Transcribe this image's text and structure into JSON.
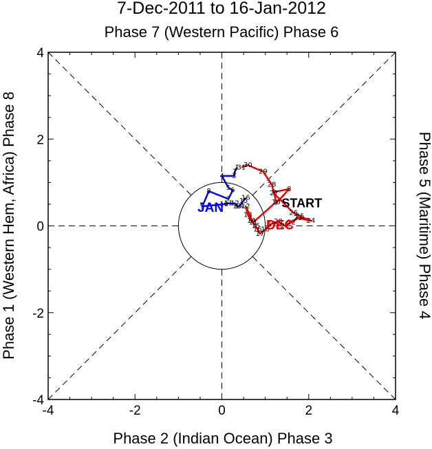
{
  "title": "7-Dec-2011 to 16-Jan-2012",
  "subtitle": "Phase 7 (Western Pacific) Phase 6",
  "xlabel": "Phase 2 (Indian Ocean) Phase 3",
  "ylabel_left": "Phase 1 (Western Hem, Africa) Phase 8",
  "ylabel_right": "Phase 5 (Maritime) Phase 4",
  "chart_data": {
    "type": "line",
    "xlim": [
      -4,
      4
    ],
    "ylim": [
      -4,
      4
    ],
    "x_ticks": [
      -4,
      -2,
      0,
      2,
      4
    ],
    "y_ticks": [
      -4,
      -2,
      0,
      2,
      4
    ],
    "unit_circle_radius": 1,
    "grid": "dashed phase boundaries",
    "start_label": "START",
    "series": [
      {
        "name": "DEC",
        "color": "#ee0000",
        "points": [
          {
            "day": "7",
            "x": 1.25,
            "y": 0.52
          },
          {
            "day": "8",
            "x": 1.55,
            "y": 0.85
          },
          {
            "day": "9",
            "x": 1.2,
            "y": 0.78
          },
          {
            "day": "10",
            "x": 1.25,
            "y": 0.55
          },
          {
            "day": "11",
            "x": 0.72,
            "y": 0.08
          },
          {
            "day": "12",
            "x": 0.55,
            "y": 0.45
          },
          {
            "day": "13",
            "x": 0.6,
            "y": 0.25
          },
          {
            "day": "14",
            "x": 0.68,
            "y": 0.12
          },
          {
            "day": "15",
            "x": 0.78,
            "y": 0.0
          },
          {
            "day": "16",
            "x": 0.82,
            "y": -0.08
          },
          {
            "day": "17",
            "x": 0.88,
            "y": -0.18
          },
          {
            "day": "18",
            "x": 1.0,
            "y": -0.08
          },
          {
            "day": "19",
            "x": 1.15,
            "y": 0.05
          },
          {
            "day": "20",
            "x": 1.3,
            "y": 0.1
          },
          {
            "day": "21",
            "x": 1.45,
            "y": 0.0
          },
          {
            "day": "22",
            "x": 1.6,
            "y": 0.08
          },
          {
            "day": "23",
            "x": 1.75,
            "y": 0.18
          },
          {
            "day": "24",
            "x": 2.05,
            "y": 0.12
          },
          {
            "day": "25",
            "x": 1.8,
            "y": 0.22
          },
          {
            "day": "26",
            "x": 1.65,
            "y": 0.3
          },
          {
            "day": "27",
            "x": 1.2,
            "y": 0.75
          },
          {
            "day": "28",
            "x": 1.15,
            "y": 0.95
          },
          {
            "day": "29",
            "x": 0.95,
            "y": 1.25
          },
          {
            "day": "30",
            "x": 0.6,
            "y": 1.4
          },
          {
            "day": "31",
            "x": 0.45,
            "y": 1.35
          }
        ]
      },
      {
        "name": "JAN",
        "color": "#0000ee",
        "points": [
          {
            "day": "1",
            "x": 0.35,
            "y": 1.35
          },
          {
            "day": "2",
            "x": 0.3,
            "y": 1.25
          },
          {
            "day": "3",
            "x": 0.28,
            "y": 1.15
          },
          {
            "day": "4",
            "x": 0.0,
            "y": 1.15
          },
          {
            "day": "5",
            "x": 0.15,
            "y": 0.88
          },
          {
            "day": "6",
            "x": 0.25,
            "y": 0.82
          },
          {
            "day": "7",
            "x": 0.15,
            "y": 0.62
          },
          {
            "day": "8",
            "x": -0.3,
            "y": 0.8
          },
          {
            "day": "9",
            "x": -0.45,
            "y": 0.45
          },
          {
            "day": "10",
            "x": 0.05,
            "y": 0.5
          },
          {
            "day": "11",
            "x": 0.15,
            "y": 0.52
          },
          {
            "day": "12",
            "x": 0.3,
            "y": 0.52
          },
          {
            "day": "13",
            "x": 0.35,
            "y": 0.45
          },
          {
            "day": "14",
            "x": 0.4,
            "y": 0.45
          },
          {
            "day": "15",
            "x": 0.5,
            "y": 0.58
          },
          {
            "day": "16",
            "x": 0.55,
            "y": 0.65
          }
        ]
      }
    ]
  }
}
